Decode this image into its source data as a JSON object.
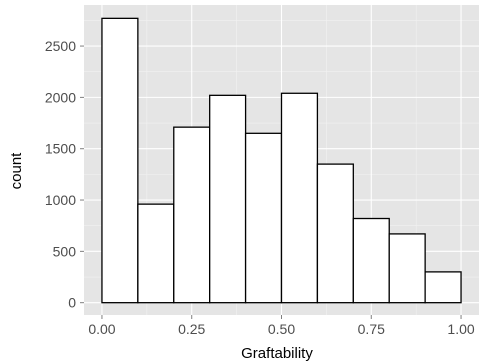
{
  "chart_data": {
    "type": "bar",
    "style": "histogram",
    "xlabel": "Graftability",
    "ylabel": "count",
    "xlim": [
      -0.05,
      1.05
    ],
    "ylim": [
      -120,
      2900
    ],
    "x_ticks": [
      0.0,
      0.25,
      0.5,
      0.75,
      1.0
    ],
    "x_tick_labels": [
      "0.00",
      "0.25",
      "0.50",
      "0.75",
      "1.00"
    ],
    "y_ticks": [
      0,
      500,
      1000,
      1500,
      2000,
      2500
    ],
    "y_tick_labels": [
      "0",
      "500",
      "1000",
      "1500",
      "2000",
      "2500"
    ],
    "bins": [
      {
        "x0": 0.0,
        "x1": 0.1,
        "count": 2770
      },
      {
        "x0": 0.1,
        "x1": 0.2,
        "count": 960
      },
      {
        "x0": 0.2,
        "x1": 0.3,
        "count": 1710
      },
      {
        "x0": 0.3,
        "x1": 0.4,
        "count": 2020
      },
      {
        "x0": 0.4,
        "x1": 0.5,
        "count": 1650
      },
      {
        "x0": 0.5,
        "x1": 0.6,
        "count": 2040
      },
      {
        "x0": 0.6,
        "x1": 0.7,
        "count": 1350
      },
      {
        "x0": 0.7,
        "x1": 0.8,
        "count": 820
      },
      {
        "x0": 0.8,
        "x1": 0.9,
        "count": 670
      },
      {
        "x0": 0.9,
        "x1": 1.0,
        "count": 300
      }
    ],
    "grid": true,
    "legend": "none",
    "colors": {
      "panel_background": "#e5e5e5",
      "major_grid": "#ffffff",
      "minor_grid": "#f2f2f2",
      "bar_fill": "#ffffff",
      "bar_outline": "#000000",
      "tick_mark": "#7f7f7f"
    }
  }
}
